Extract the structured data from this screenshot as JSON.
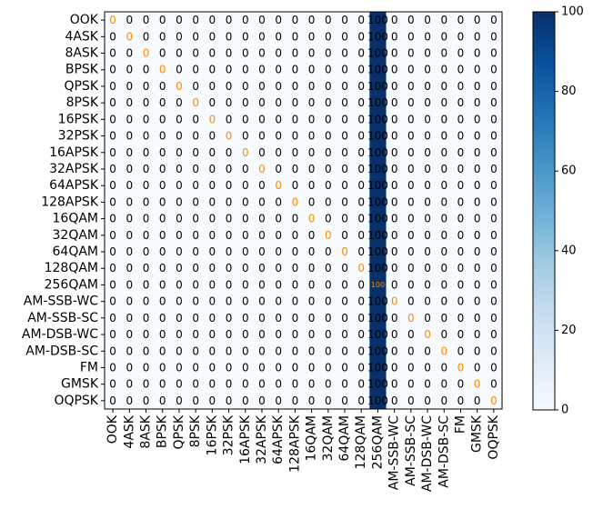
{
  "chart_data": {
    "type": "heatmap",
    "title": "",
    "xlabel": "",
    "ylabel": "",
    "labels": [
      "OOK",
      "4ASK",
      "8ASK",
      "BPSK",
      "QPSK",
      "8PSK",
      "16PSK",
      "32PSK",
      "16APSK",
      "32APSK",
      "64APSK",
      "128APSK",
      "16QAM",
      "32QAM",
      "64QAM",
      "128QAM",
      "256QAM",
      "AM-SSB-WC",
      "AM-SSB-SC",
      "AM-DSB-WC",
      "AM-DSB-SC",
      "FM",
      "GMSK",
      "OQPSK"
    ],
    "predicted_column_value": 100,
    "predicted_column_index": 16,
    "other_cells_value": 0,
    "diagonal_text_color": "#ff8c00",
    "offdiagonal_text_color": "#000000",
    "colorscale": {
      "name": "Blues",
      "min": 0,
      "max": 100,
      "low_color": "#f7fbff",
      "high_color": "#08306b"
    },
    "colorbar_ticks": [
      0,
      20,
      40,
      60,
      80,
      100
    ],
    "grid": false
  }
}
